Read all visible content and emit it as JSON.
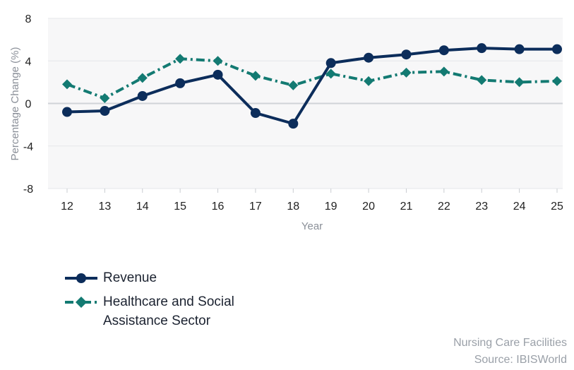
{
  "chart_data": {
    "type": "line",
    "xlabel": "Year",
    "ylabel": "Percentage Change (%)",
    "ylim": [
      -8,
      8
    ],
    "yticks": [
      -8,
      -4,
      0,
      4,
      8
    ],
    "x": [
      "12",
      "13",
      "14",
      "15",
      "16",
      "17",
      "18",
      "19",
      "20",
      "21",
      "22",
      "23",
      "24",
      "25"
    ],
    "grid": true,
    "legend_position": "bottom-left",
    "series": [
      {
        "name": "Revenue",
        "color": "#0c2d5b",
        "marker": "circle",
        "line_style": "solid",
        "values": [
          -0.8,
          -0.7,
          0.7,
          1.9,
          2.7,
          -0.9,
          -1.9,
          3.8,
          4.3,
          4.6,
          5.0,
          5.2,
          5.1,
          5.1
        ]
      },
      {
        "name": "Healthcare and Social Assistance Sector",
        "color": "#137a72",
        "marker": "diamond",
        "line_style": "dash-dot",
        "values": [
          1.8,
          0.5,
          2.4,
          4.2,
          4.0,
          2.6,
          1.7,
          2.8,
          2.1,
          2.9,
          3.0,
          2.2,
          2.0,
          2.1
        ]
      }
    ]
  },
  "source": {
    "line1": "Nursing Care Facilities",
    "line2": "Source: IBISWorld"
  }
}
